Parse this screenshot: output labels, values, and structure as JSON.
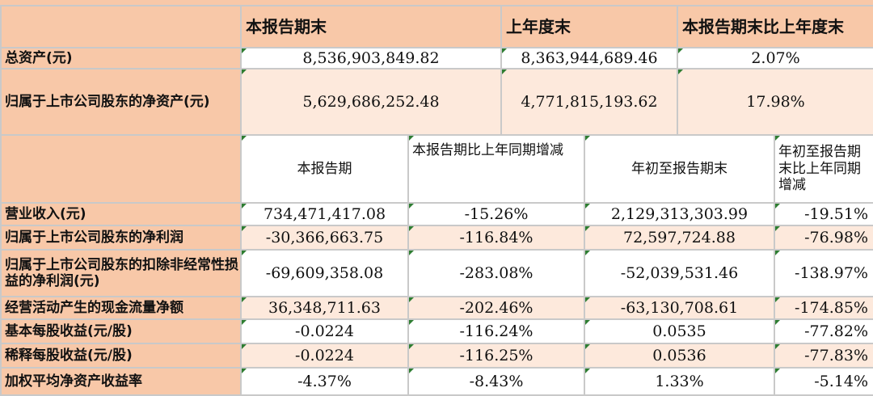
{
  "header": {
    "col1": "本报告期末",
    "col2": "上年度末",
    "col3": "本报告期末比上年度末"
  },
  "balance_rows": [
    {
      "label": "总资产(元)",
      "current": "8,536,903,849.82",
      "prior": "8,363,944,689.46",
      "change": "2.07%"
    },
    {
      "label": "归属于上市公司股东的净资产(元)",
      "current": "5,629,686,252.48",
      "prior": "4,771,815,193.62",
      "change": "17.98%"
    }
  ],
  "sub_header": {
    "col1": "本报告期",
    "col2": "本报告期比上年同期增减",
    "col3": "年初至报告期末",
    "col4": "年初至报告期末比上年同期增减"
  },
  "income_rows": [
    {
      "label": "营业收入(元)",
      "period": "734,471,417.08",
      "period_change": "-15.26%",
      "ytd": "2,129,313,303.99",
      "ytd_change": "-19.51%"
    },
    {
      "label": "归属于上市公司股东的净利润",
      "period": "-30,366,663.75",
      "period_change": "-116.84%",
      "ytd": "72,597,724.88",
      "ytd_change": "-76.98%"
    },
    {
      "label": "归属于上市公司股东的扣除非经常性损益的净利润(元)",
      "period": "-69,609,358.08",
      "period_change": "-283.08%",
      "ytd": "-52,039,531.46",
      "ytd_change": "-138.97%"
    },
    {
      "label": "经营活动产生的现金流量净额",
      "period": "36,348,711.63",
      "period_change": "-202.46%",
      "ytd": "-63,130,708.61",
      "ytd_change": "-174.85%"
    },
    {
      "label": "基本每股收益(元/股)",
      "period": "-0.0224",
      "period_change": "-116.24%",
      "ytd": "0.0535",
      "ytd_change": "-77.82%"
    },
    {
      "label": "稀释每股收益(元/股)",
      "period": "-0.0224",
      "period_change": "-116.25%",
      "ytd": "0.0536",
      "ytd_change": "-77.83%"
    },
    {
      "label": "加权平均净资产收益率",
      "period": "-4.37%",
      "period_change": "-8.43%",
      "ytd": "1.33%",
      "ytd_change": "-5.14%"
    }
  ]
}
